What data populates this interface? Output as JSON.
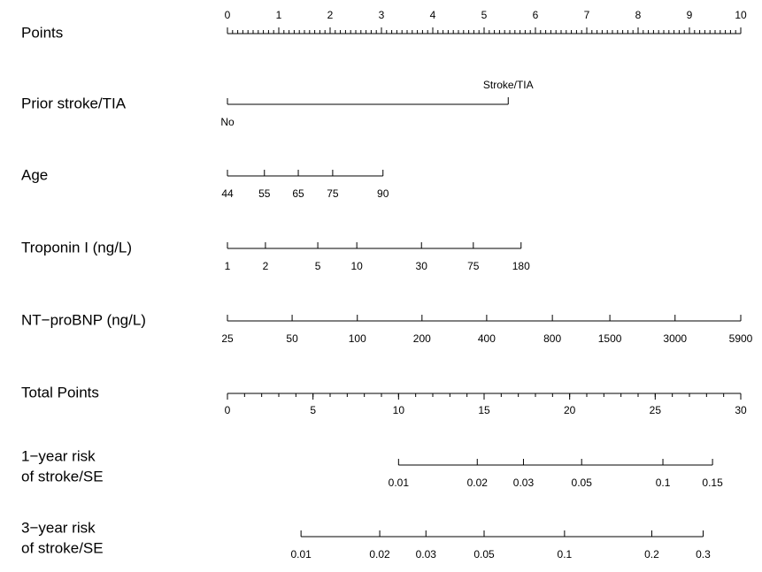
{
  "chart_data": {
    "type": "nomogram",
    "points": {
      "label": "Points",
      "xlim": [
        0,
        10
      ],
      "xticks": [
        0,
        1,
        2,
        3,
        4,
        5,
        6,
        7,
        8,
        9,
        10
      ],
      "minor_step": 0.1
    },
    "variables": [
      {
        "label": "Prior stroke/TIA",
        "categorical": true,
        "ticks": [
          {
            "value": 0,
            "label": "No"
          },
          {
            "value": 5.47,
            "label": "Stroke/TIA"
          }
        ]
      },
      {
        "label": "Age",
        "ticks": [
          {
            "value": 0,
            "label": "44"
          },
          {
            "value": 0.72,
            "label": "55"
          },
          {
            "value": 1.38,
            "label": "65"
          },
          {
            "value": 2.05,
            "label": "75"
          },
          {
            "value": 3.03,
            "label": "90"
          }
        ]
      },
      {
        "label": "Troponin I (ng/L)",
        "ticks": [
          {
            "value": 0,
            "label": "1"
          },
          {
            "value": 0.74,
            "label": "2"
          },
          {
            "value": 1.76,
            "label": "5"
          },
          {
            "value": 2.52,
            "label": "10"
          },
          {
            "value": 3.78,
            "label": "30"
          },
          {
            "value": 4.79,
            "label": "75"
          },
          {
            "value": 5.72,
            "label": "180"
          }
        ]
      },
      {
        "label": "NT−proBNP (ng/L)",
        "ticks": [
          {
            "value": 0,
            "label": "25"
          },
          {
            "value": 1.26,
            "label": "50"
          },
          {
            "value": 2.53,
            "label": "100"
          },
          {
            "value": 3.79,
            "label": "200"
          },
          {
            "value": 5.05,
            "label": "400"
          },
          {
            "value": 6.33,
            "label": "800"
          },
          {
            "value": 7.45,
            "label": "1500"
          },
          {
            "value": 8.72,
            "label": "3000"
          },
          {
            "value": 10,
            "label": "5900"
          }
        ]
      }
    ],
    "total": {
      "label": "Total Points",
      "xlim": [
        0,
        30
      ],
      "xticks": [
        0,
        5,
        10,
        15,
        20,
        25,
        30
      ],
      "minor_step": 1
    },
    "risks": [
      {
        "label": [
          "1−year risk",
          "of stroke/SE"
        ],
        "ticks": [
          {
            "value": 10.0,
            "label": "0.01"
          },
          {
            "value": 14.6,
            "label": "0.02"
          },
          {
            "value": 17.3,
            "label": "0.03"
          },
          {
            "value": 20.7,
            "label": "0.05"
          },
          {
            "value": 25.45,
            "label": "0.1"
          },
          {
            "value": 28.35,
            "label": "0.15"
          }
        ]
      },
      {
        "label": [
          "3−year risk",
          "of stroke/SE"
        ],
        "ticks": [
          {
            "value": 4.3,
            "label": "0.01"
          },
          {
            "value": 8.9,
            "label": "0.02"
          },
          {
            "value": 11.6,
            "label": "0.03"
          },
          {
            "value": 15.0,
            "label": "0.05"
          },
          {
            "value": 19.7,
            "label": "0.1"
          },
          {
            "value": 24.8,
            "label": "0.2"
          },
          {
            "value": 27.8,
            "label": "0.3"
          }
        ]
      }
    ]
  }
}
